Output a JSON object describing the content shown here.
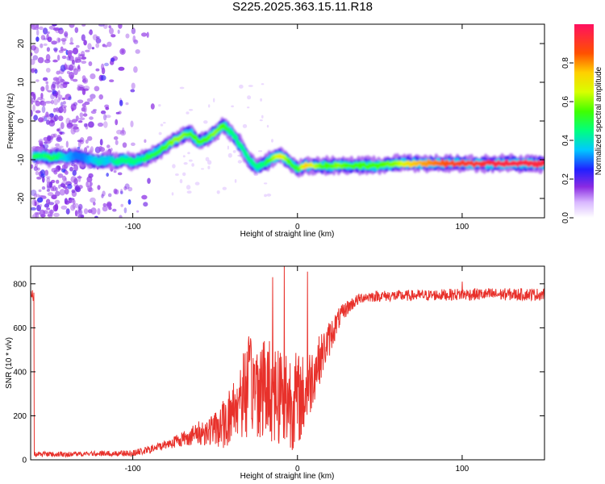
{
  "title": "S225.2025.363.15.11.R18",
  "chart_data": [
    {
      "type": "heatmap",
      "title": "S225.2025.363.15.11.R18",
      "xlabel": "Height of straight line (km)",
      "ylabel": "Frequency (Hz)",
      "xlim": [
        -162,
        150
      ],
      "ylim": [
        -25,
        25
      ],
      "xticks": [
        -100,
        0,
        100
      ],
      "yticks": [
        -20,
        -10,
        0,
        10,
        20
      ],
      "ridge": [
        {
          "x": -160,
          "f": -9.0,
          "a": 0.5
        },
        {
          "x": -155,
          "f": -9.0,
          "a": 0.45
        },
        {
          "x": -150,
          "f": -9.5,
          "a": 0.5
        },
        {
          "x": -145,
          "f": -9.0,
          "a": 0.45
        },
        {
          "x": -140,
          "f": -9.5,
          "a": 0.35
        },
        {
          "x": -135,
          "f": -9.0,
          "a": 0.3
        },
        {
          "x": -130,
          "f": -9.5,
          "a": 0.3
        },
        {
          "x": -125,
          "f": -10.0,
          "a": 0.35
        },
        {
          "x": -120,
          "f": -10.5,
          "a": 0.4
        },
        {
          "x": -115,
          "f": -10.0,
          "a": 0.35
        },
        {
          "x": -110,
          "f": -10.5,
          "a": 0.45
        },
        {
          "x": -105,
          "f": -10.0,
          "a": 0.45
        },
        {
          "x": -100,
          "f": -10.5,
          "a": 0.45
        },
        {
          "x": -95,
          "f": -10.0,
          "a": 0.45
        },
        {
          "x": -90,
          "f": -9.0,
          "a": 0.5
        },
        {
          "x": -85,
          "f": -8.0,
          "a": 0.5
        },
        {
          "x": -80,
          "f": -6.5,
          "a": 0.55
        },
        {
          "x": -75,
          "f": -5.0,
          "a": 0.6
        },
        {
          "x": -70,
          "f": -4.0,
          "a": 0.6
        },
        {
          "x": -65,
          "f": -3.0,
          "a": 0.55
        },
        {
          "x": -60,
          "f": -5.5,
          "a": 0.55
        },
        {
          "x": -55,
          "f": -4.5,
          "a": 0.55
        },
        {
          "x": -50,
          "f": -3.0,
          "a": 0.6
        },
        {
          "x": -45,
          "f": -1.0,
          "a": 0.55
        },
        {
          "x": -40,
          "f": -3.0,
          "a": 0.45
        },
        {
          "x": -35,
          "f": -6.0,
          "a": 0.45
        },
        {
          "x": -30,
          "f": -9.5,
          "a": 0.45
        },
        {
          "x": -25,
          "f": -12.0,
          "a": 0.45
        },
        {
          "x": -20,
          "f": -11.0,
          "a": 0.45
        },
        {
          "x": -15,
          "f": -9.5,
          "a": 0.6
        },
        {
          "x": -10,
          "f": -9.0,
          "a": 0.7
        },
        {
          "x": -5,
          "f": -10.5,
          "a": 0.55
        },
        {
          "x": 0,
          "f": -12.5,
          "a": 0.5
        },
        {
          "x": 5,
          "f": -11.5,
          "a": 0.75
        },
        {
          "x": 10,
          "f": -11.5,
          "a": 0.65
        },
        {
          "x": 15,
          "f": -11.5,
          "a": 0.55
        },
        {
          "x": 20,
          "f": -11.5,
          "a": 0.55
        },
        {
          "x": 25,
          "f": -11.5,
          "a": 0.6
        },
        {
          "x": 30,
          "f": -11.5,
          "a": 0.55
        },
        {
          "x": 35,
          "f": -11.5,
          "a": 0.55
        },
        {
          "x": 40,
          "f": -11.5,
          "a": 0.55
        },
        {
          "x": 50,
          "f": -11.5,
          "a": 0.55
        },
        {
          "x": 60,
          "f": -11.0,
          "a": 0.6
        },
        {
          "x": 70,
          "f": -11.0,
          "a": 0.75
        },
        {
          "x": 80,
          "f": -11.0,
          "a": 0.8
        },
        {
          "x": 90,
          "f": -11.0,
          "a": 0.85
        },
        {
          "x": 100,
          "f": -11.0,
          "a": 0.9
        },
        {
          "x": 110,
          "f": -11.0,
          "a": 0.92
        },
        {
          "x": 120,
          "f": -11.0,
          "a": 0.95
        },
        {
          "x": 130,
          "f": -11.0,
          "a": 0.95
        },
        {
          "x": 140,
          "f": -11.0,
          "a": 0.95
        },
        {
          "x": 150,
          "f": -11.0,
          "a": 0.95
        }
      ],
      "noise_region": {
        "x_from": -162,
        "x_to": -85,
        "level": 0.12
      },
      "colorbar": {
        "label": "Normalized spectral amplitude",
        "range": [
          0,
          1
        ],
        "ticks": [
          0.0,
          0.2,
          0.4,
          0.6,
          0.8
        ],
        "tick_labels": [
          "0.0",
          "0.2",
          "0.4",
          "0.6",
          "0.8"
        ]
      }
    },
    {
      "type": "line",
      "xlabel": "Height of straight line (km)",
      "ylabel": "SNR (10 * v/v)",
      "xlim": [
        -162,
        150
      ],
      "ylim": [
        0,
        880
      ],
      "xticks": [
        -100,
        0,
        100
      ],
      "yticks": [
        0,
        200,
        400,
        600,
        800
      ],
      "color": "#e8312b",
      "series": [
        {
          "name": "SNR",
          "x": [
            -160,
            -140,
            -120,
            -100,
            -90,
            -80,
            -70,
            -60,
            -50,
            -45,
            -40,
            -35,
            -30,
            -25,
            -20,
            -15,
            -10,
            -5,
            0,
            5,
            10,
            15,
            20,
            25,
            30,
            35,
            40,
            50,
            60,
            80,
            100,
            120,
            150
          ],
          "y": [
            25,
            25,
            28,
            30,
            45,
            70,
            95,
            120,
            140,
            160,
            210,
            290,
            330,
            340,
            330,
            320,
            300,
            280,
            270,
            300,
            400,
            480,
            560,
            640,
            690,
            720,
            740,
            745,
            745,
            748,
            752,
            752,
            752
          ],
          "jitter": [
            12,
            12,
            12,
            14,
            18,
            22,
            35,
            55,
            80,
            110,
            150,
            200,
            230,
            240,
            240,
            240,
            260,
            240,
            220,
            180,
            140,
            100,
            80,
            50,
            35,
            28,
            25,
            25,
            25,
            25,
            28,
            28,
            28
          ]
        }
      ],
      "spikes": [
        {
          "x": -8,
          "y": 880
        },
        {
          "x": 6,
          "y": 855
        },
        {
          "x": -15,
          "y": 830
        },
        {
          "x": 100,
          "y": 810
        }
      ]
    }
  ]
}
